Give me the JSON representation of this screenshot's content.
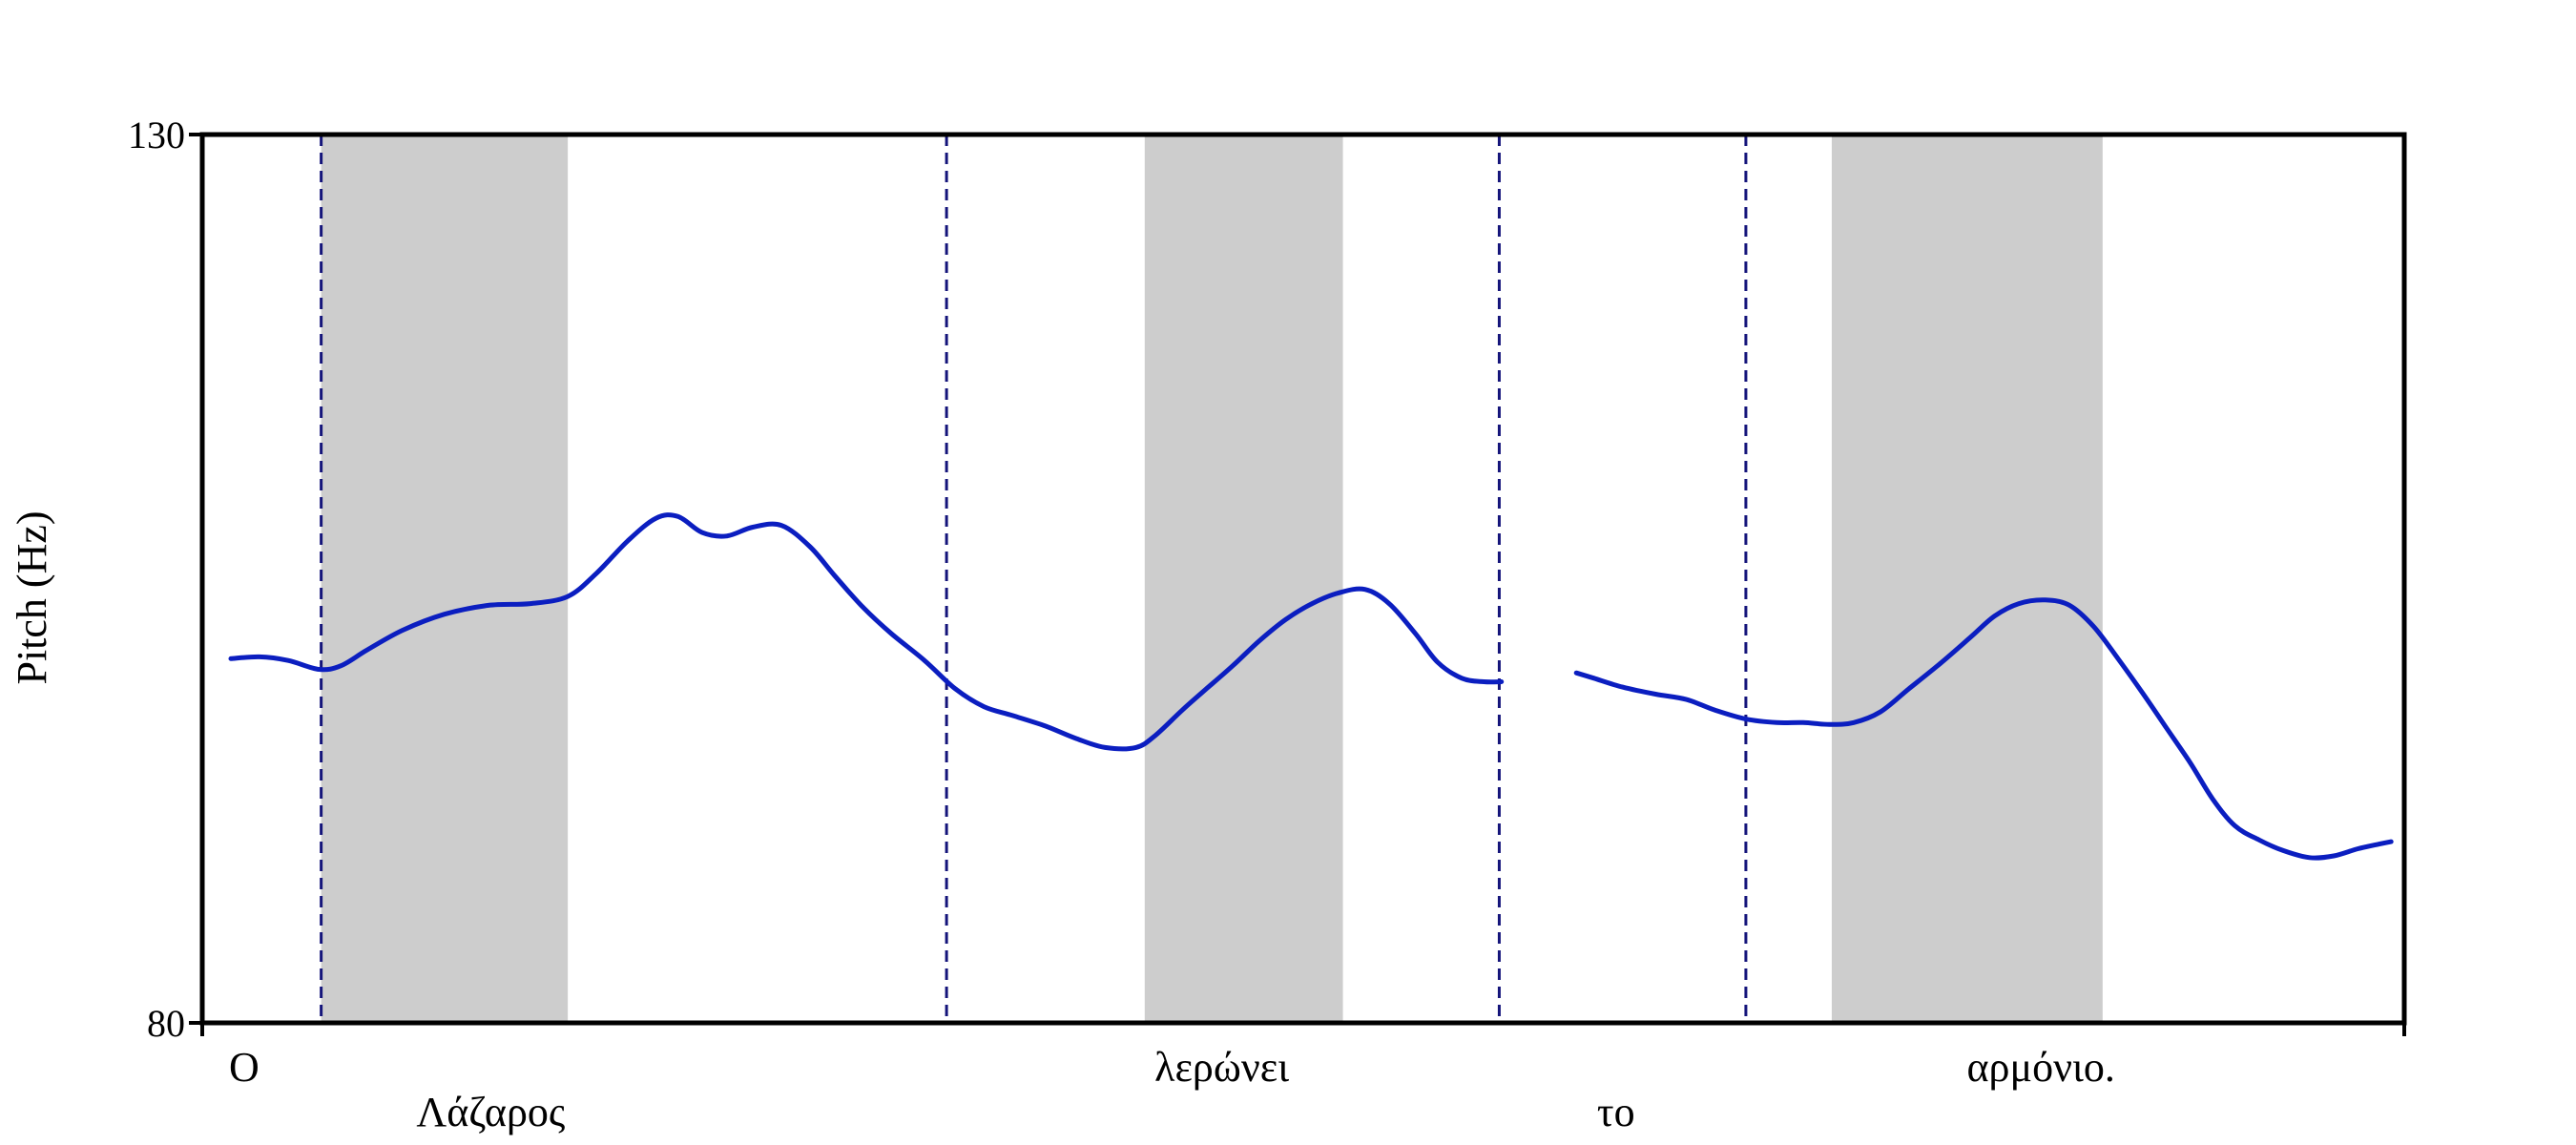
{
  "chart_data": {
    "type": "line",
    "title": "",
    "ylabel": "Pitch (Hz)",
    "xlabel": "",
    "ylim": [
      80,
      130
    ],
    "yticks": [
      {
        "value": 130,
        "label": "130"
      },
      {
        "value": 80,
        "label": "80"
      }
    ],
    "xlim": [
      0,
      100
    ],
    "stressed_regions": [
      {
        "start": 5.4,
        "end": 16.6
      },
      {
        "start": 42.8,
        "end": 51.8
      },
      {
        "start": 74.0,
        "end": 86.3
      }
    ],
    "boundaries": [
      5.4,
      33.8,
      58.9,
      70.1
    ],
    "series": [
      {
        "color": "#0b1ec0",
        "segments": [
          {
            "x": [
              1.3,
              2.6,
              3.9,
              5.3,
              6.3,
              7.5,
              9.1,
              11.0,
              13.0,
              14.9,
              16.6,
              17.9,
              19.3,
              20.6,
              21.6,
              22.7,
              23.8,
              25.0,
              26.3,
              27.6,
              28.7,
              30.0,
              31.3,
              32.8,
              34.2,
              35.5,
              36.8,
              38.3,
              39.7,
              41.0,
              42.4,
              43.3,
              44.5,
              45.6,
              46.8,
              48.0,
              49.2,
              50.4,
              51.6,
              52.8,
              53.9,
              55.1,
              56.1,
              57.2,
              58.2,
              59.0
            ],
            "y": [
              100.5,
              100.6,
              100.4,
              99.9,
              100.1,
              101.0,
              102.1,
              103.0,
              103.5,
              103.6,
              104.0,
              105.3,
              107.1,
              108.4,
              108.5,
              107.6,
              107.4,
              107.9,
              108.0,
              106.8,
              105.2,
              103.4,
              101.9,
              100.4,
              98.8,
              97.8,
              97.3,
              96.7,
              96.0,
              95.5,
              95.5,
              96.2,
              97.6,
              98.8,
              100.1,
              101.5,
              102.7,
              103.6,
              104.2,
              104.4,
              103.6,
              101.9,
              100.3,
              99.4,
              99.2,
              99.2
            ]
          },
          {
            "x": [
              62.4,
              63.2,
              64.5,
              66.0,
              67.4,
              68.7,
              70.1,
              71.5,
              72.7,
              73.9,
              75.0,
              76.2,
              77.5,
              78.9,
              80.3,
              81.4,
              82.5,
              83.7,
              84.8,
              85.9,
              87.0,
              88.1,
              89.2,
              90.3,
              91.3,
              92.3,
              93.4,
              94.5,
              95.7,
              96.8,
              97.9,
              99.0,
              99.4
            ],
            "y": [
              99.7,
              99.4,
              98.9,
              98.5,
              98.2,
              97.6,
              97.1,
              96.9,
              96.9,
              96.8,
              96.9,
              97.5,
              98.8,
              100.2,
              101.7,
              102.9,
              103.6,
              103.8,
              103.5,
              102.3,
              100.5,
              98.6,
              96.6,
              94.6,
              92.6,
              91.1,
              90.3,
              89.7,
              89.3,
              89.4,
              89.8,
              90.1,
              90.2
            ]
          }
        ]
      }
    ],
    "words": [
      {
        "text": "Ο",
        "x": 1.9,
        "row": 1
      },
      {
        "text": "Λάζαρος",
        "x": 13.1,
        "row": 2
      },
      {
        "text": "λερώνει",
        "x": 46.3,
        "row": 1
      },
      {
        "text": "το",
        "x": 64.2,
        "row": 2
      },
      {
        "text": "αρμόνιο.",
        "x": 83.5,
        "row": 1
      }
    ]
  }
}
